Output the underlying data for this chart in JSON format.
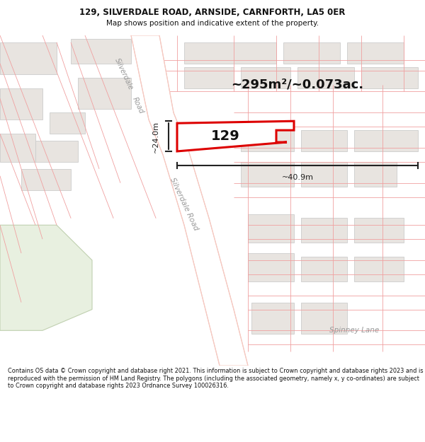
{
  "title_line1": "129, SILVERDALE ROAD, ARNSIDE, CARNFORTH, LA5 0ER",
  "title_line2": "Map shows position and indicative extent of the property.",
  "area_text": "~295m²/~0.073ac.",
  "label_129": "129",
  "dim_width": "~40.9m",
  "dim_height": "~24.0m",
  "road_label": "Silverdale Road",
  "road_label2": "Spinney Lane",
  "footer_text": "Contains OS data © Crown copyright and database right 2021. This information is subject to Crown copyright and database rights 2023 and is reproduced with the permission of HM Land Registry. The polygons (including the associated geometry, namely x, y co-ordinates) are subject to Crown copyright and database rights 2023 Ordnance Survey 100026316.",
  "map_bg": "#ffffff",
  "plot_fill": "#ffffff",
  "plot_stroke": "#dd0000",
  "road_color": "#f5c8c0",
  "road_white": "#ffffff",
  "bldg_color": "#e8e4e0",
  "bldg_edge": "#cccccc",
  "green_color": "#e8f0e0",
  "green_edge": "#c0d0b0",
  "boundary_color": "#f0a0a0",
  "header_bg": "#ffffff",
  "footer_bg": "#ffffff",
  "dim_color": "#222222",
  "road_label_color": "#999999"
}
